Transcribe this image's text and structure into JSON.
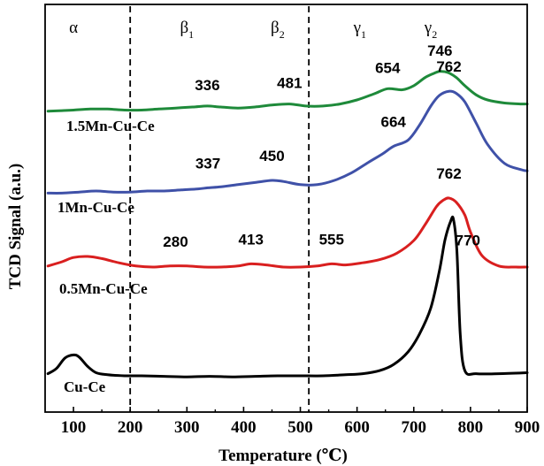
{
  "chart_data": {
    "type": "line",
    "xlabel": "Temperature (℃)",
    "ylabel": "TCD Signal (a.u.)",
    "xlim": [
      50,
      900
    ],
    "x_ticks": [
      100,
      200,
      300,
      400,
      500,
      600,
      700,
      800,
      900
    ],
    "grid": false,
    "legend": "none",
    "region_dividers_x": [
      200,
      515
    ],
    "region_labels": [
      {
        "symbol": "α",
        "sub": "",
        "x": 100
      },
      {
        "symbol": "β",
        "sub": "1",
        "x": 300
      },
      {
        "symbol": "β",
        "sub": "2",
        "x": 460
      },
      {
        "symbol": "γ",
        "sub": "1",
        "x": 605
      },
      {
        "symbol": "γ",
        "sub": "2",
        "x": 730
      }
    ],
    "series": [
      {
        "name": "1.5Mn-Cu-Ce",
        "color": "#1e8a3a",
        "x": [
          55,
          80,
          100,
          130,
          160,
          190,
          220,
          250,
          280,
          310,
          336,
          360,
          390,
          420,
          450,
          481,
          510,
          540,
          570,
          600,
          630,
          654,
          680,
          700,
          720,
          735,
          746,
          760,
          775,
          790,
          810,
          830,
          860,
          890,
          900
        ],
        "y": [
          0.09,
          0.095,
          0.1,
          0.11,
          0.11,
          0.1,
          0.1,
          0.11,
          0.12,
          0.13,
          0.14,
          0.13,
          0.12,
          0.13,
          0.15,
          0.16,
          0.14,
          0.14,
          0.16,
          0.2,
          0.26,
          0.31,
          0.3,
          0.34,
          0.42,
          0.46,
          0.48,
          0.47,
          0.42,
          0.34,
          0.25,
          0.2,
          0.17,
          0.16,
          0.16
        ]
      },
      {
        "name": "1Mn-Cu-Ce",
        "color": "#3f51a8",
        "x": [
          55,
          80,
          110,
          140,
          170,
          200,
          230,
          260,
          290,
          320,
          337,
          360,
          390,
          420,
          450,
          470,
          500,
          530,
          560,
          590,
          620,
          645,
          664,
          690,
          710,
          730,
          745,
          762,
          775,
          790,
          810,
          830,
          860,
          890,
          900
        ],
        "y": [
          0.08,
          0.08,
          0.09,
          0.1,
          0.09,
          0.09,
          0.1,
          0.1,
          0.11,
          0.12,
          0.13,
          0.14,
          0.16,
          0.18,
          0.2,
          0.19,
          0.16,
          0.16,
          0.2,
          0.27,
          0.37,
          0.45,
          0.52,
          0.58,
          0.72,
          0.9,
          1.0,
          1.04,
          1.02,
          0.94,
          0.74,
          0.54,
          0.36,
          0.3,
          0.29
        ]
      },
      {
        "name": "0.5Mn-Cu-Ce",
        "color": "#d91f1f",
        "x": [
          55,
          80,
          100,
          125,
          150,
          180,
          210,
          240,
          270,
          300,
          330,
          360,
          390,
          413,
          440,
          470,
          500,
          530,
          555,
          580,
          610,
          640,
          670,
          700,
          720,
          740,
          752,
          762,
          775,
          790,
          800,
          820,
          850,
          880,
          900
        ],
        "y": [
          0.06,
          0.1,
          0.14,
          0.15,
          0.13,
          0.09,
          0.06,
          0.05,
          0.06,
          0.06,
          0.05,
          0.05,
          0.06,
          0.08,
          0.07,
          0.05,
          0.05,
          0.06,
          0.08,
          0.07,
          0.09,
          0.12,
          0.18,
          0.3,
          0.45,
          0.62,
          0.68,
          0.7,
          0.66,
          0.54,
          0.38,
          0.16,
          0.06,
          0.05,
          0.05
        ]
      },
      {
        "name": "Cu-Ce",
        "color": "#000000",
        "x": [
          55,
          70,
          85,
          100,
          110,
          125,
          140,
          160,
          190,
          220,
          260,
          300,
          340,
          380,
          420,
          460,
          500,
          540,
          580,
          610,
          640,
          665,
          690,
          710,
          730,
          745,
          755,
          765,
          770,
          776,
          782,
          790,
          810,
          850,
          900
        ],
        "y": [
          0.02,
          0.07,
          0.17,
          0.2,
          0.18,
          0.09,
          0.03,
          0.01,
          0.0,
          0.0,
          -0.005,
          -0.01,
          -0.005,
          -0.01,
          -0.005,
          0.0,
          0.0,
          0.0,
          0.01,
          0.02,
          0.05,
          0.11,
          0.23,
          0.4,
          0.65,
          1.0,
          1.3,
          1.48,
          1.5,
          1.2,
          0.4,
          0.05,
          0.02,
          0.02,
          0.03
        ]
      }
    ],
    "annotations": [
      {
        "text": "336",
        "series": "1.5Mn-Cu-Ce",
        "x": 336
      },
      {
        "text": "481",
        "series": "1.5Mn-Cu-Ce",
        "x": 481
      },
      {
        "text": "654",
        "series": "1.5Mn-Cu-Ce",
        "x": 654
      },
      {
        "text": "746",
        "series": "1.5Mn-Cu-Ce",
        "x": 746
      },
      {
        "text": "337",
        "series": "1Mn-Cu-Ce",
        "x": 337
      },
      {
        "text": "450",
        "series": "1Mn-Cu-Ce",
        "x": 450
      },
      {
        "text": "664",
        "series": "1Mn-Cu-Ce",
        "x": 664
      },
      {
        "text": "762",
        "series": "1Mn-Cu-Ce",
        "x": 762
      },
      {
        "text": "280",
        "series": "0.5Mn-Cu-Ce",
        "x": 280
      },
      {
        "text": "413",
        "series": "0.5Mn-Cu-Ce",
        "x": 413
      },
      {
        "text": "555",
        "series": "0.5Mn-Cu-Ce",
        "x": 555
      },
      {
        "text": "762",
        "series": "0.5Mn-Cu-Ce",
        "x": 762
      },
      {
        "text": "770",
        "series": "Cu-Ce",
        "x": 770
      }
    ]
  }
}
